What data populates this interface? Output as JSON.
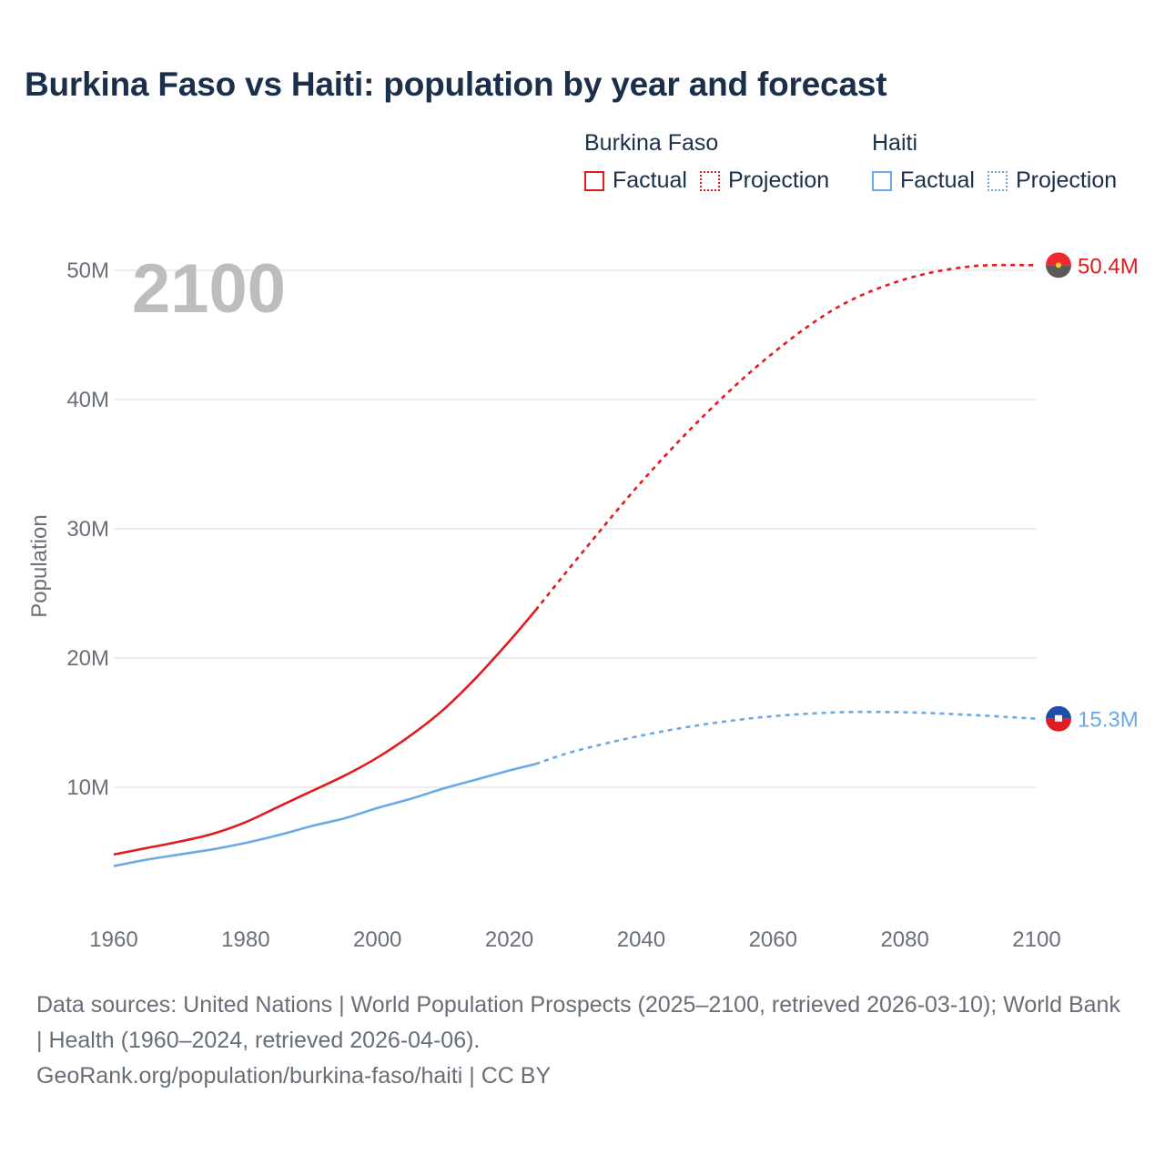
{
  "title": "Burkina Faso vs Haiti: population by year and forecast",
  "legend": {
    "groups": [
      {
        "country": "Burkina Faso",
        "color": "#e31a1c",
        "items": [
          "Factual",
          "Projection"
        ]
      },
      {
        "country": "Haiti",
        "color": "#6aa9e6",
        "items": [
          "Factual",
          "Projection"
        ]
      }
    ]
  },
  "year_overlay": "2100",
  "footer": {
    "sources": "Data sources: United Nations | World Population Prospects (2025–2100, retrieved 2026-03-10); World Bank | Health (1960–2024, retrieved 2026-04-06).",
    "credit": "GeoRank.org/population/burkina-faso/haiti | CC BY"
  },
  "chart_data": {
    "type": "line",
    "title": "Burkina Faso vs Haiti: population by year and forecast",
    "xlabel": "",
    "ylabel": "Population",
    "xlim": [
      1960,
      2100
    ],
    "ylim": [
      0,
      50000000
    ],
    "x_ticks": [
      1960,
      1980,
      2000,
      2020,
      2040,
      2060,
      2080,
      2100
    ],
    "x_tick_labels": [
      "1960",
      "1980",
      "2000",
      "2020",
      "2040",
      "2060",
      "2080",
      "2100"
    ],
    "y_ticks": [
      10000000,
      20000000,
      30000000,
      40000000,
      50000000
    ],
    "y_tick_labels": [
      "10M",
      "20M",
      "30M",
      "40M",
      "50M"
    ],
    "grid": true,
    "series": [
      {
        "name": "Burkina Faso",
        "color": "#e31a1c",
        "end_label": "50.4M",
        "factual": {
          "x": [
            1960,
            1965,
            1970,
            1975,
            1980,
            1985,
            1990,
            1995,
            2000,
            2005,
            2010,
            2015,
            2020,
            2024
          ],
          "y": [
            4800000,
            5300000,
            5800000,
            6400000,
            7300000,
            8500000,
            9700000,
            10900000,
            12300000,
            14000000,
            16000000,
            18500000,
            21300000,
            23700000
          ]
        },
        "projection": {
          "x": [
            2024,
            2030,
            2040,
            2050,
            2060,
            2070,
            2080,
            2090,
            2100
          ],
          "y": [
            23700000,
            27500000,
            33600000,
            39000000,
            43600000,
            47200000,
            49300000,
            50300000,
            50400000
          ]
        }
      },
      {
        "name": "Haiti",
        "color": "#6aa9e6",
        "end_label": "15.3M",
        "factual": {
          "x": [
            1960,
            1965,
            1970,
            1975,
            1980,
            1985,
            1990,
            1995,
            2000,
            2005,
            2010,
            2015,
            2020,
            2024
          ],
          "y": [
            3900000,
            4400000,
            4800000,
            5200000,
            5700000,
            6300000,
            7000000,
            7600000,
            8400000,
            9100000,
            9900000,
            10600000,
            11300000,
            11800000
          ]
        },
        "projection": {
          "x": [
            2024,
            2030,
            2040,
            2050,
            2060,
            2070,
            2080,
            2090,
            2100
          ],
          "y": [
            11800000,
            12800000,
            14000000,
            14900000,
            15500000,
            15800000,
            15800000,
            15600000,
            15300000
          ]
        }
      }
    ]
  }
}
